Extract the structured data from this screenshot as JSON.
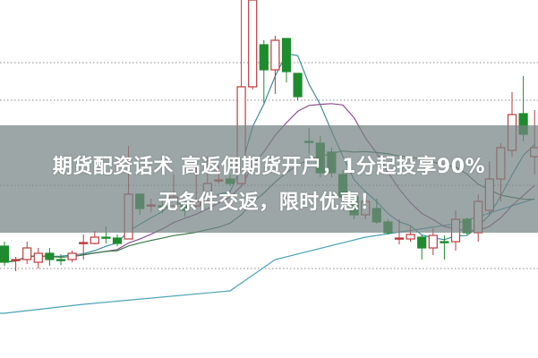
{
  "banner": {
    "line1": "期货配资话术 高返佣期货开户，1分起投享90%",
    "line2": "无条件交返，限时优惠！"
  },
  "chart_data": {
    "type": "candlestick",
    "title": "",
    "xlabel": "",
    "ylabel": "",
    "ylim": [
      0,
      100
    ],
    "grid": "horizontal-dotted",
    "grid_values": [
      25,
      48.25,
      72,
      82.5
    ],
    "up_color": "#c0393b",
    "down_color": "#1e8c2e",
    "candles": [
      [
        31.25,
        32.5,
        25.75,
        26.75
      ],
      [
        27.5,
        28.25,
        24.25,
        27.5
      ],
      [
        27.5,
        32.5,
        26.25,
        30.75
      ],
      [
        26.75,
        30.75,
        25,
        29.25
      ],
      [
        29.25,
        30.75,
        25.75,
        27.5
      ],
      [
        27.5,
        29,
        26,
        27.25
      ],
      [
        27.5,
        30,
        26.75,
        29.25
      ],
      [
        32,
        34.5,
        27.5,
        32.25
      ],
      [
        32,
        35.5,
        31.75,
        33.75
      ],
      [
        33.75,
        36.75,
        32,
        33.5
      ],
      [
        33.5,
        34.5,
        31.25,
        32
      ],
      [
        33.25,
        59.25,
        33.25,
        45.75
      ],
      [
        45.75,
        45.75,
        40,
        41.75
      ],
      [
        42.5,
        44.5,
        40.75,
        42.75
      ],
      [
        42.5,
        44.5,
        40.5,
        42.25
      ],
      [
        42.5,
        51.25,
        42.5,
        45
      ],
      [
        42.5,
        43.75,
        39.5,
        41.25
      ],
      [
        42.5,
        53.5,
        42,
        43.75
      ],
      [
        43.75,
        56.25,
        43,
        48.75
      ],
      [
        49.5,
        53.75,
        48.75,
        49.75
      ],
      [
        50,
        51.25,
        48,
        48.75
      ],
      [
        48.75,
        100,
        48.75,
        75.75
      ],
      [
        75.75,
        100,
        75,
        100
      ],
      [
        87.5,
        88.75,
        71.25,
        80.5
      ],
      [
        80.5,
        90,
        73.75,
        88.75
      ],
      [
        89.25,
        89.25,
        77,
        80
      ],
      [
        79.5,
        79.5,
        72,
        73
      ],
      [
        60.5,
        64.25,
        57,
        60.25
      ],
      [
        60,
        62,
        50.5,
        51.75
      ],
      [
        57.5,
        58.75,
        50.5,
        51.75
      ],
      [
        51.25,
        52.5,
        41.25,
        45
      ],
      [
        45,
        46.25,
        38.75,
        40
      ],
      [
        40,
        45,
        38.75,
        43.75
      ],
      [
        41.75,
        44.5,
        37.5,
        38
      ],
      [
        38,
        38.75,
        34.5,
        35
      ],
      [
        33.25,
        38.75,
        31.75,
        33.5
      ],
      [
        33.25,
        36.75,
        32.5,
        34.5
      ],
      [
        33.75,
        34.25,
        27.5,
        30.75
      ],
      [
        30.75,
        36.25,
        28.75,
        34.25
      ],
      [
        32.5,
        34.25,
        27.5,
        32.25
      ],
      [
        32.5,
        41.25,
        30,
        38.75
      ],
      [
        38.75,
        39.25,
        34.5,
        35
      ],
      [
        35,
        45.75,
        32.5,
        43.75
      ],
      [
        41.25,
        55,
        40,
        50
      ],
      [
        50,
        60,
        43.75,
        58.75
      ],
      [
        58,
        74.25,
        56.25,
        68
      ],
      [
        68.25,
        78.75,
        60.5,
        62.5
      ],
      [
        56.25,
        69.25,
        51.25,
        58.75
      ]
    ],
    "candle_fields": [
      "open",
      "high",
      "low",
      "close"
    ],
    "moving_averages": [
      {
        "period": 5,
        "color": "#3e8e9c"
      },
      {
        "period": 10,
        "color": "#8e4f8e"
      },
      {
        "period": 20,
        "color": "#3d7a4f"
      }
    ],
    "long_line": {
      "color": "#4aa3b3",
      "points": [
        [
          0,
          12.5
        ],
        [
          7,
          15
        ],
        [
          20,
          18.75
        ],
        [
          24,
          27.5
        ],
        [
          32,
          33.75
        ],
        [
          40,
          37.5
        ],
        [
          47,
          44.5
        ]
      ]
    }
  }
}
